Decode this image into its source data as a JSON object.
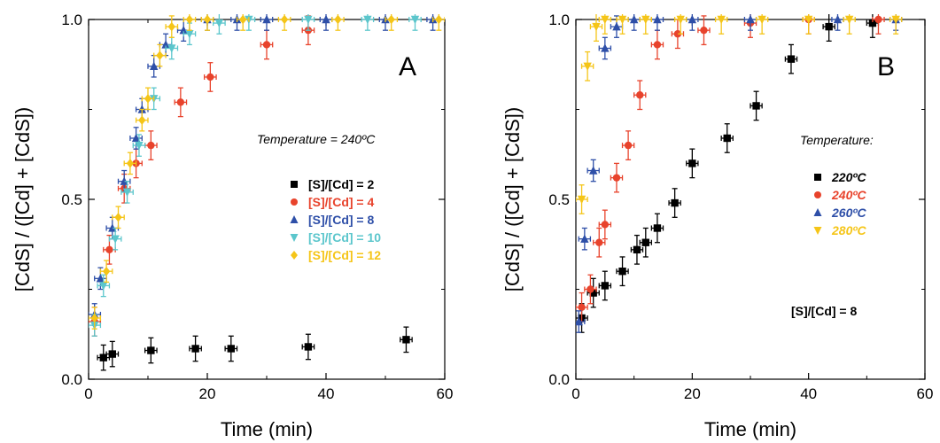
{
  "chart_data": [
    {
      "type": "scatter",
      "panel": "A",
      "xlabel": "Time (min)",
      "ylabel": "[CdS] / ([Cd] + [CdS])",
      "xlim": [
        0,
        60
      ],
      "ylim": [
        0.0,
        1.0
      ],
      "xticks": [
        0,
        20,
        40,
        60
      ],
      "yticks": [
        0.0,
        0.5,
        1.0
      ],
      "xtick_labels": [
        "0",
        "20",
        "40",
        "60"
      ],
      "ytick_labels": [
        "0.0",
        "0.5",
        "1.0"
      ],
      "legend_title": "Temperature = 240ºC",
      "legend_position": "right",
      "series": [
        {
          "name": "[S]/[Cd] = 2",
          "color": "#000000",
          "marker": "square",
          "x": [
            2.5,
            4,
            10.5,
            18,
            24,
            37,
            53.5
          ],
          "y": [
            0.06,
            0.07,
            0.08,
            0.085,
            0.085,
            0.09,
            0.11
          ],
          "yerr": 0.035,
          "xerr": 1.0
        },
        {
          "name": "[S]/[Cd] = 4",
          "color": "#e8432c",
          "marker": "circle",
          "x": [
            1,
            3.5,
            6,
            8,
            10.5,
            15.5,
            20.5,
            30,
            37
          ],
          "y": [
            0.16,
            0.36,
            0.53,
            0.6,
            0.65,
            0.77,
            0.84,
            0.93,
            0.97
          ],
          "yerr": 0.04,
          "xerr": 1.0
        },
        {
          "name": "[S]/[Cd] = 8",
          "color": "#2e4fa8",
          "marker": "triangle-up",
          "x": [
            1,
            2,
            4,
            6,
            8,
            9,
            11,
            13,
            16,
            20,
            25,
            30,
            40,
            50,
            58
          ],
          "y": [
            0.18,
            0.28,
            0.42,
            0.55,
            0.67,
            0.75,
            0.87,
            0.93,
            0.97,
            1.0,
            1.0,
            1.0,
            1.0,
            1.0,
            1.0
          ],
          "yerr": 0.03,
          "xerr": 1.0
        },
        {
          "name": "[S]/[Cd] = 10",
          "color": "#5bc6cc",
          "marker": "triangle-down",
          "x": [
            1,
            2.5,
            4.5,
            6.5,
            8.5,
            11,
            14,
            17,
            22,
            27,
            37,
            47,
            55
          ],
          "y": [
            0.15,
            0.26,
            0.39,
            0.52,
            0.65,
            0.78,
            0.92,
            0.96,
            0.99,
            1.0,
            1.0,
            1.0,
            1.0
          ],
          "yerr": 0.03,
          "xerr": 1.0
        },
        {
          "name": "[S]/[Cd] = 12",
          "color": "#f5c518",
          "marker": "diamond",
          "x": [
            1,
            3,
            5,
            7,
            9,
            10,
            12,
            14,
            17,
            20,
            26,
            33,
            42,
            51,
            59
          ],
          "y": [
            0.17,
            0.3,
            0.45,
            0.6,
            0.72,
            0.78,
            0.9,
            0.98,
            1.0,
            1.0,
            1.0,
            1.0,
            1.0,
            1.0,
            1.0
          ],
          "yerr": 0.03,
          "xerr": 1.0
        }
      ]
    },
    {
      "type": "scatter",
      "panel": "B",
      "xlabel": "Time (min)",
      "ylabel": "[CdS] / ([Cd] + [CdS])",
      "xlim": [
        0,
        60
      ],
      "ylim": [
        0.0,
        1.0
      ],
      "xticks": [
        0,
        20,
        40,
        60
      ],
      "yticks": [
        0.0,
        0.5,
        1.0
      ],
      "xtick_labels": [
        "0",
        "20",
        "40",
        "60"
      ],
      "ytick_labels": [
        "0.0",
        "0.5",
        "1.0"
      ],
      "legend_title": "Temperature:",
      "legend_position": "right",
      "annotation": "[S]/[Cd] = 8",
      "series": [
        {
          "name": "220ºC",
          "color": "#000000",
          "marker": "square",
          "x": [
            1,
            3,
            5,
            8,
            10.5,
            12,
            14,
            17,
            20,
            26,
            31,
            37,
            43.5,
            51
          ],
          "y": [
            0.17,
            0.24,
            0.26,
            0.3,
            0.36,
            0.38,
            0.42,
            0.49,
            0.6,
            0.67,
            0.76,
            0.89,
            0.98,
            0.99
          ],
          "yerr": 0.04,
          "xerr": 1.0
        },
        {
          "name": "240ºC",
          "color": "#e8432c",
          "marker": "circle",
          "x": [
            1,
            2.5,
            4,
            5,
            7,
            9,
            11,
            14,
            17.5,
            22,
            30,
            40,
            52
          ],
          "y": [
            0.2,
            0.25,
            0.38,
            0.43,
            0.56,
            0.65,
            0.79,
            0.93,
            0.96,
            0.97,
            0.99,
            1.0,
            1.0
          ],
          "yerr": 0.04,
          "xerr": 1.0
        },
        {
          "name": "260ºC",
          "color": "#2e4fa8",
          "marker": "triangle-up",
          "x": [
            0.5,
            1.5,
            3,
            5,
            7,
            10,
            14,
            20,
            30,
            45,
            55
          ],
          "y": [
            0.16,
            0.39,
            0.58,
            0.92,
            0.98,
            1.0,
            1.0,
            1.0,
            1.0,
            1.0,
            1.0
          ],
          "yerr": 0.03,
          "xerr": 1.0
        },
        {
          "name": "280ºC",
          "color": "#f5c518",
          "marker": "triangle-down",
          "x": [
            1,
            2,
            3.5,
            5,
            8,
            12,
            18,
            25,
            32,
            40,
            47,
            55
          ],
          "y": [
            0.5,
            0.87,
            0.98,
            1.0,
            1.0,
            1.0,
            1.0,
            1.0,
            1.0,
            1.0,
            1.0,
            1.0
          ],
          "yerr": 0.04,
          "xerr": 1.0
        }
      ]
    }
  ]
}
